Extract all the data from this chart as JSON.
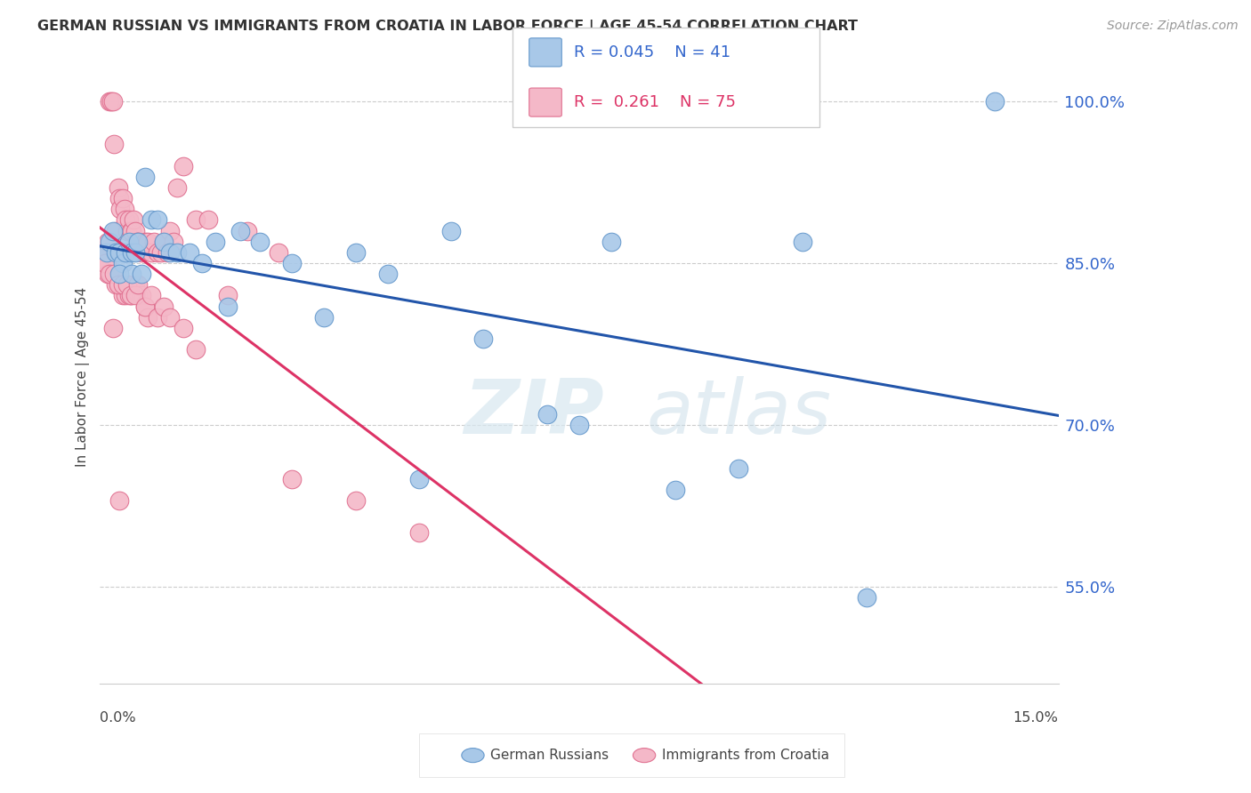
{
  "title": "GERMAN RUSSIAN VS IMMIGRANTS FROM CROATIA IN LABOR FORCE | AGE 45-54 CORRELATION CHART",
  "source": "Source: ZipAtlas.com",
  "ylabel": "In Labor Force | Age 45-54",
  "y_ticks": [
    55.0,
    70.0,
    85.0,
    100.0
  ],
  "y_tick_labels": [
    "55.0%",
    "70.0%",
    "85.0%",
    "100.0%"
  ],
  "xmin": 0.0,
  "xmax": 15.0,
  "ymin": 46.0,
  "ymax": 103.0,
  "blue_color": "#a8c8e8",
  "blue_edge_color": "#6699cc",
  "pink_color": "#f4b8c8",
  "pink_edge_color": "#e07090",
  "blue_line_color": "#2255aa",
  "pink_line_color": "#dd3366",
  "legend_blue_R": "0.045",
  "legend_blue_N": "41",
  "legend_pink_R": "0.261",
  "legend_pink_N": "75",
  "legend_label_blue": "German Russians",
  "legend_label_pink": "Immigrants from Croatia",
  "watermark_zip": "ZIP",
  "watermark_atlas": "atlas",
  "blue_scatter_x": [
    0.1,
    0.15,
    0.2,
    0.25,
    0.3,
    0.35,
    0.4,
    0.45,
    0.5,
    0.55,
    0.6,
    0.7,
    0.8,
    0.9,
    1.0,
    1.1,
    1.2,
    1.4,
    1.6,
    1.8,
    2.0,
    2.5,
    3.0,
    3.5,
    4.0,
    4.5,
    5.0,
    5.5,
    6.0,
    7.0,
    7.5,
    8.0,
    9.0,
    10.0,
    11.0,
    12.0,
    14.0,
    0.3,
    0.5,
    0.65,
    2.2
  ],
  "blue_scatter_y": [
    86,
    87,
    88,
    86,
    86,
    85,
    86,
    87,
    86,
    86,
    87,
    93,
    89,
    89,
    87,
    86,
    86,
    86,
    85,
    87,
    81,
    87,
    85,
    80,
    86,
    84,
    65,
    88,
    78,
    71,
    70,
    87,
    64,
    66,
    87,
    54,
    100,
    84,
    84,
    84,
    88
  ],
  "pink_scatter_x": [
    0.05,
    0.08,
    0.1,
    0.12,
    0.15,
    0.18,
    0.2,
    0.22,
    0.25,
    0.28,
    0.3,
    0.32,
    0.35,
    0.38,
    0.4,
    0.42,
    0.45,
    0.48,
    0.5,
    0.52,
    0.55,
    0.58,
    0.6,
    0.65,
    0.7,
    0.75,
    0.8,
    0.85,
    0.9,
    0.95,
    1.0,
    1.05,
    1.1,
    1.15,
    1.2,
    1.3,
    1.5,
    1.7,
    2.0,
    2.3,
    2.8,
    0.12,
    0.18,
    0.25,
    0.3,
    0.35,
    0.4,
    0.45,
    0.5,
    0.55,
    0.6,
    0.65,
    0.7,
    0.75,
    0.08,
    0.15,
    0.22,
    0.28,
    0.35,
    0.42,
    0.48,
    0.55,
    0.6,
    0.7,
    0.8,
    0.9,
    1.0,
    1.1,
    1.3,
    1.5,
    3.0,
    4.0,
    5.0,
    0.2,
    0.3
  ],
  "pink_scatter_y": [
    86,
    86,
    85,
    87,
    100,
    100,
    100,
    96,
    88,
    92,
    91,
    90,
    91,
    90,
    89,
    88,
    89,
    88,
    88,
    89,
    88,
    87,
    87,
    86,
    87,
    87,
    86,
    87,
    86,
    86,
    87,
    86,
    88,
    87,
    92,
    94,
    89,
    89,
    82,
    88,
    86,
    84,
    84,
    83,
    83,
    82,
    82,
    82,
    82,
    83,
    82,
    82,
    81,
    80,
    85,
    84,
    84,
    83,
    83,
    83,
    82,
    82,
    83,
    81,
    82,
    80,
    81,
    80,
    79,
    77,
    65,
    63,
    60,
    79,
    63
  ]
}
